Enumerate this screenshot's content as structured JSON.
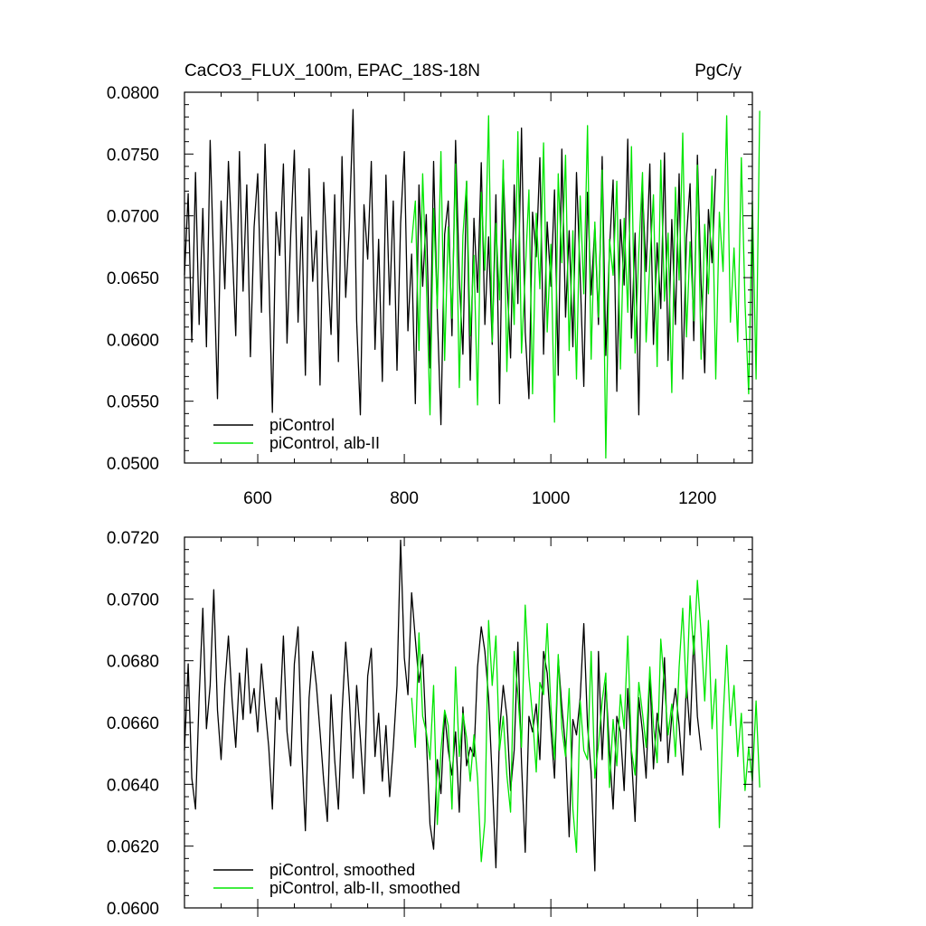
{
  "chart_data": [
    {
      "type": "line",
      "title": "CaCO3_FLUX_100m, EPAC_18S-18N",
      "units": "PgC/y",
      "xlim": [
        500,
        1275
      ],
      "ylim": [
        0.05,
        0.08
      ],
      "x_ticks": [
        600,
        800,
        1000,
        1200
      ],
      "x_tick_labels": [
        "600",
        "800",
        "1000",
        "1200"
      ],
      "y_ticks": [
        0.05,
        0.055,
        0.06,
        0.065,
        0.07,
        0.075,
        0.08
      ],
      "y_tick_labels": [
        "0.0500",
        "0.0550",
        "0.0600",
        "0.0650",
        "0.0700",
        "0.0750",
        "0.0800"
      ],
      "legend_position": "bottom-left",
      "series": [
        {
          "name": "piControl",
          "color": "#000000",
          "x_start": 500,
          "x_end": 1200,
          "x_step": 5,
          "values": [
            0.0652,
            0.0718,
            0.0598,
            0.0735,
            0.0612,
            0.0706,
            0.0594,
            0.0761,
            0.0658,
            0.0552,
            0.0712,
            0.0641,
            0.0744,
            0.0676,
            0.0603,
            0.0752,
            0.0639,
            0.0725,
            0.0586,
            0.0691,
            0.0734,
            0.0622,
            0.0758,
            0.0655,
            0.0541,
            0.0703,
            0.0668,
            0.0742,
            0.0597,
            0.0685,
            0.0753,
            0.0614,
            0.0699,
            0.0571,
            0.0738,
            0.0647,
            0.0688,
            0.0563,
            0.0727,
            0.0661,
            0.0604,
            0.0717,
            0.0582,
            0.0748,
            0.0634,
            0.0691,
            0.0786,
            0.0615,
            0.0539,
            0.0709,
            0.0665,
            0.0744,
            0.0592,
            0.0681,
            0.0566,
            0.0733,
            0.0628,
            0.0712,
            0.0575,
            0.0694,
            0.0752,
            0.0607,
            0.0669,
            0.0548,
            0.0725,
            0.0643,
            0.0701,
            0.0577,
            0.0744,
            0.0622,
            0.0531,
            0.0685,
            0.0712,
            0.0603,
            0.0761,
            0.0649,
            0.0588,
            0.0728,
            0.0567,
            0.0698,
            0.0638,
            0.0743,
            0.0612,
            0.0683,
            0.0596,
            0.0717,
            0.0548,
            0.0738,
            0.0652,
            0.0585,
            0.0725,
            0.0629,
            0.0771,
            0.0606,
            0.0552,
            0.0703,
            0.0667,
            0.0747,
            0.0588,
            0.0695,
            0.0643,
            0.0721,
            0.0571,
            0.0754,
            0.0618,
            0.0688,
            0.0594,
            0.0735,
            0.0651,
            0.0562,
            0.0719,
            0.0636,
            0.0692,
            0.0612,
            0.0748,
            0.0587,
            0.0673,
            0.0729,
            0.0558,
            0.0697,
            0.0644,
            0.0762,
            0.0601,
            0.0686,
            0.0539,
            0.0721,
            0.0655,
            0.0742,
            0.0596,
            0.0678,
            0.0625,
            0.0751,
            0.0583,
            0.0697,
            0.0612,
            0.0734,
            0.0568,
            0.0682,
            0.0726,
            0.0599,
            0.0749,
            0.0645,
            0.0573,
            0.0705,
            0.0662,
            0.0738
          ]
        },
        {
          "name": "piControl, alb-II",
          "color": "#00e600",
          "x_start": 810,
          "x_end": 1275,
          "x_step": 5,
          "values": [
            0.0678,
            0.0712,
            0.0591,
            0.0734,
            0.0648,
            0.0539,
            0.0706,
            0.0625,
            0.0752,
            0.0583,
            0.0691,
            0.0617,
            0.0742,
            0.0561,
            0.0684,
            0.0728,
            0.0603,
            0.0668,
            0.0547,
            0.0719,
            0.0656,
            0.0781,
            0.0598,
            0.0694,
            0.0632,
            0.0745,
            0.0574,
            0.0681,
            0.0612,
            0.0768,
            0.0589,
            0.0653,
            0.0721,
            0.0556,
            0.0702,
            0.0641,
            0.0759,
            0.0606,
            0.0677,
            0.0533,
            0.0734,
            0.0662,
            0.0749,
            0.0591,
            0.0688,
            0.0568,
            0.0716,
            0.0637,
            0.0773,
            0.0584,
            0.0695,
            0.0618,
            0.0737,
            0.0504,
            0.0681,
            0.0652,
            0.0728,
            0.0576,
            0.0698,
            0.0622,
            0.0756,
            0.0589,
            0.0671,
            0.0735,
            0.0598,
            0.0662,
            0.0717,
            0.0578,
            0.0745,
            0.0631,
            0.0686,
            0.0557,
            0.0723,
            0.0648,
            0.0767,
            0.0602,
            0.0679,
            0.0615,
            0.0741,
            0.0584,
            0.0693,
            0.0637,
            0.0732,
            0.0568,
            0.0703,
            0.0655,
            0.0781,
            0.0614,
            0.0674,
            0.0598,
            0.0747,
            0.0629,
            0.0556,
            0.0712,
            0.0568,
            0.0785
          ]
        }
      ]
    },
    {
      "type": "line",
      "xlim": [
        500,
        1275
      ],
      "ylim": [
        0.06,
        0.072
      ],
      "y_ticks": [
        0.06,
        0.062,
        0.064,
        0.066,
        0.068,
        0.07,
        0.072
      ],
      "y_tick_labels": [
        "0.0600",
        "0.0620",
        "0.0640",
        "0.0660",
        "0.0680",
        "0.0700",
        "0.0720"
      ],
      "legend_position": "bottom-left",
      "series": [
        {
          "name": "piControl, smoothed",
          "color": "#000000",
          "x_start": 500,
          "x_end": 1200,
          "x_step": 5,
          "values": [
            0.0651,
            0.0679,
            0.0642,
            0.0632,
            0.0668,
            0.0697,
            0.0658,
            0.0672,
            0.0703,
            0.0664,
            0.0648,
            0.0672,
            0.0688,
            0.0667,
            0.0652,
            0.0676,
            0.0661,
            0.0684,
            0.0663,
            0.0671,
            0.0657,
            0.0679,
            0.0665,
            0.0652,
            0.0632,
            0.0668,
            0.0661,
            0.0688,
            0.0657,
            0.0646,
            0.0679,
            0.0691,
            0.0651,
            0.0625,
            0.0668,
            0.0683,
            0.0672,
            0.0657,
            0.0641,
            0.0628,
            0.0669,
            0.0648,
            0.0632,
            0.0663,
            0.0686,
            0.0668,
            0.0642,
            0.0672,
            0.0655,
            0.0637,
            0.0675,
            0.0684,
            0.0649,
            0.0663,
            0.0641,
            0.0659,
            0.0636,
            0.0652,
            0.0672,
            0.0719,
            0.0681,
            0.0669,
            0.0702,
            0.0687,
            0.0673,
            0.0682,
            0.0655,
            0.0627,
            0.0619,
            0.0648,
            0.0637,
            0.0663,
            0.0651,
            0.0643,
            0.0657,
            0.0631,
            0.0665,
            0.0646,
            0.0652,
            0.0649,
            0.0678,
            0.0691,
            0.0683,
            0.0668,
            0.0642,
            0.0613,
            0.0657,
            0.0672,
            0.0662,
            0.0638,
            0.0651,
            0.0686,
            0.0647,
            0.0618,
            0.0662,
            0.0657,
            0.0666,
            0.0648,
            0.0683,
            0.0676,
            0.0658,
            0.0642,
            0.0681,
            0.0665,
            0.0652,
            0.0623,
            0.0661,
            0.0656,
            0.0668,
            0.0692,
            0.0659,
            0.0644,
            0.0612,
            0.0683,
            0.0648,
            0.0673,
            0.0651,
            0.0632,
            0.0662,
            0.0657,
            0.0638,
            0.0671,
            0.0649,
            0.0628,
            0.0668,
            0.0657,
            0.0642,
            0.0676,
            0.0645,
            0.0663,
            0.0654,
            0.0681,
            0.0647,
            0.0662,
            0.0671,
            0.0659,
            0.0643,
            0.0673,
            0.0656,
            0.0688,
            0.0662,
            0.0651
          ]
        },
        {
          "name": "piControl, alb-II, smoothed",
          "color": "#00e600",
          "x_start": 810,
          "x_end": 1275,
          "x_step": 5,
          "values": [
            0.0668,
            0.0652,
            0.0689,
            0.0662,
            0.0657,
            0.0648,
            0.0672,
            0.0627,
            0.0651,
            0.0664,
            0.0659,
            0.0632,
            0.0678,
            0.0649,
            0.0663,
            0.0655,
            0.0641,
            0.0656,
            0.0642,
            0.0615,
            0.0628,
            0.0693,
            0.0672,
            0.0688,
            0.0651,
            0.0662,
            0.0643,
            0.0631,
            0.0683,
            0.0669,
            0.0652,
            0.0698,
            0.0675,
            0.0662,
            0.0644,
            0.0673,
            0.0669,
            0.0692,
            0.0665,
            0.0648,
            0.0682,
            0.0658,
            0.0649,
            0.0671,
            0.0632,
            0.0618,
            0.0667,
            0.0651,
            0.0648,
            0.0683,
            0.0642,
            0.0653,
            0.0667,
            0.0676,
            0.0639,
            0.0661,
            0.0646,
            0.0669,
            0.0658,
            0.0688,
            0.0651,
            0.0643,
            0.0673,
            0.0663,
            0.0652,
            0.0678,
            0.0659,
            0.0647,
            0.0687,
            0.0672,
            0.0656,
            0.0666,
            0.0649,
            0.0678,
            0.0697,
            0.0668,
            0.0701,
            0.0682,
            0.0706,
            0.0689,
            0.0667,
            0.0693,
            0.0658,
            0.0674,
            0.0626,
            0.0661,
            0.0685,
            0.0659,
            0.0672,
            0.0649,
            0.0663,
            0.0638,
            0.0652,
            0.0641,
            0.0667,
            0.0639
          ]
        }
      ]
    }
  ]
}
